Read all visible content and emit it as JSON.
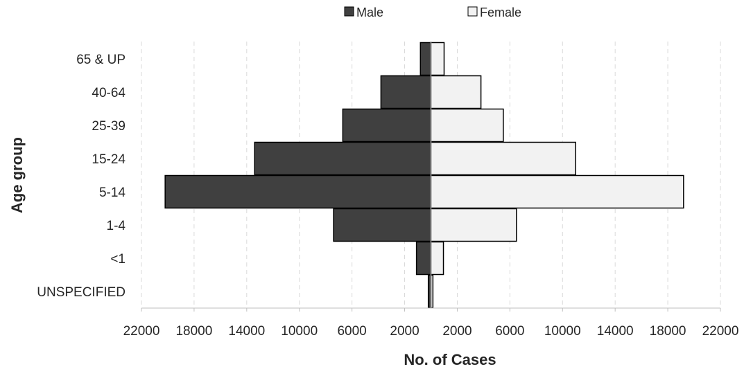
{
  "chart_data": {
    "type": "bar",
    "orientation": "horizontal",
    "layout": "population-pyramid",
    "categories": [
      "65 & UP",
      "40-64",
      "25-39",
      "15-24",
      "5-14",
      "1-4",
      "<1",
      "UNSPECIFIED"
    ],
    "series": [
      {
        "name": "Male",
        "side": "left",
        "color": "#404040",
        "values": [
          800,
          3800,
          6700,
          13400,
          20200,
          7400,
          1100,
          200
        ]
      },
      {
        "name": "Female",
        "side": "right",
        "color": "#f2f2f2",
        "values": [
          1000,
          3800,
          5500,
          11000,
          19200,
          6500,
          950,
          150
        ]
      }
    ],
    "xlabel": "No. of Cases",
    "ylabel": "Age group",
    "xlim": [
      -22000,
      22000
    ],
    "ticks": [
      -22000,
      -18000,
      -14000,
      -10000,
      -6000,
      -2000,
      2000,
      6000,
      10000,
      14000,
      18000,
      22000
    ],
    "tick_labels": [
      "22000",
      "18000",
      "14000",
      "10000",
      "6000",
      "2000",
      "2000",
      "6000",
      "10000",
      "14000",
      "18000",
      "22000"
    ],
    "grid": "vertical dashed",
    "legend_position": "top-center"
  }
}
